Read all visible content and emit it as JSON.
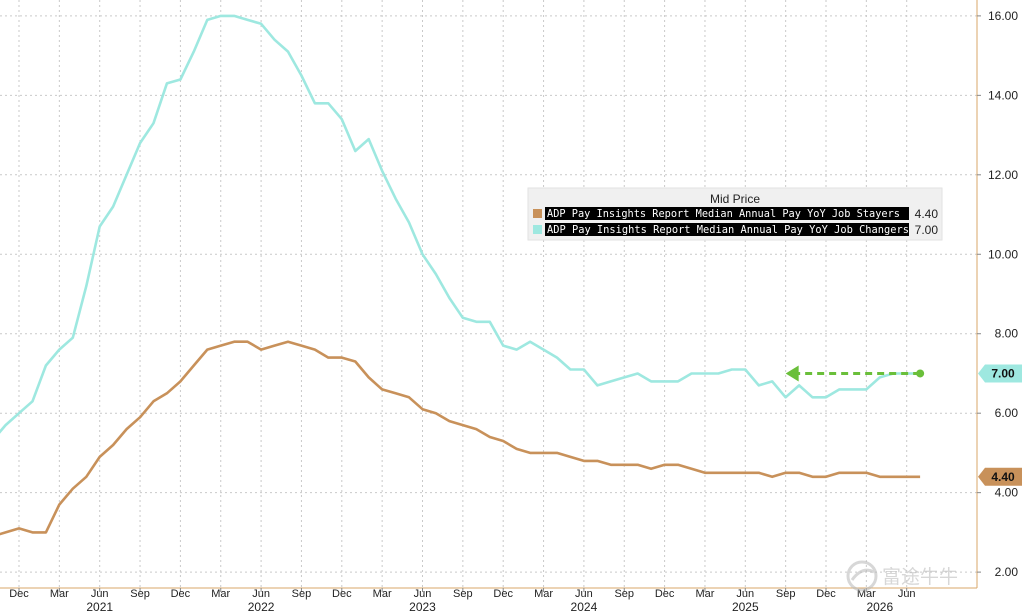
{
  "chart_data": {
    "type": "line",
    "title": "",
    "xlabel": "",
    "ylabel": "",
    "ylim": [
      1.6,
      16.4
    ],
    "y_ticks": [
      "2.00",
      "4.00",
      "6.00",
      "8.00",
      "10.00",
      "12.00",
      "14.00",
      "16.00"
    ],
    "y_axis_side": "right",
    "grid": true,
    "x_tick_labels": [
      {
        "date": "2020-12",
        "label": "Dec"
      },
      {
        "date": "2021-03",
        "label": "Mar"
      },
      {
        "date": "2021-06",
        "label": "Jun"
      },
      {
        "date": "2021-09",
        "label": "Sep"
      },
      {
        "date": "2021-12",
        "label": "Dec"
      },
      {
        "date": "2022-03",
        "label": "Mar"
      },
      {
        "date": "2022-06",
        "label": "Jun"
      },
      {
        "date": "2022-09",
        "label": "Sep"
      },
      {
        "date": "2022-12",
        "label": "Dec"
      },
      {
        "date": "2023-03",
        "label": "Mar"
      },
      {
        "date": "2023-06",
        "label": "Jun"
      },
      {
        "date": "2023-09",
        "label": "Sep"
      },
      {
        "date": "2023-12",
        "label": "Dec"
      },
      {
        "date": "2024-03",
        "label": "Mar"
      },
      {
        "date": "2024-06",
        "label": "Jun"
      },
      {
        "date": "2024-09",
        "label": "Sep"
      },
      {
        "date": "2024-12",
        "label": "Dec"
      },
      {
        "date": "2025-03",
        "label": "Mar"
      },
      {
        "date": "2025-06",
        "label": "Jun"
      },
      {
        "date": "2025-09",
        "label": "Sep"
      },
      {
        "date": "2025-12",
        "label": "Dec"
      },
      {
        "date": "2026-03",
        "label": "Mar"
      },
      {
        "date": "2026-06",
        "label": "Jun"
      }
    ],
    "year_labels": [
      {
        "date": "2021-06",
        "label": "2021"
      },
      {
        "date": "2022-06",
        "label": "2022"
      },
      {
        "date": "2023-06",
        "label": "2023"
      },
      {
        "date": "2024-06",
        "label": "2024"
      },
      {
        "date": "2025-06",
        "label": "2025"
      },
      {
        "date": "2026-04",
        "label": "2026"
      }
    ],
    "legend": {
      "title": "Mid Price",
      "placement": "right-center"
    },
    "series": [
      {
        "name": "ADP Pay Insights Report Median Annual Pay YoY Job Stayers",
        "value_label": "4.40",
        "badge": "4.40",
        "color": "#c8915a",
        "x": [
          "2020-10",
          "2020-11",
          "2020-12",
          "2021-01",
          "2021-02",
          "2021-03",
          "2021-04",
          "2021-05",
          "2021-06",
          "2021-07",
          "2021-08",
          "2021-09",
          "2021-10",
          "2021-11",
          "2021-12",
          "2022-01",
          "2022-02",
          "2022-03",
          "2022-04",
          "2022-05",
          "2022-06",
          "2022-07",
          "2022-08",
          "2022-09",
          "2022-10",
          "2022-11",
          "2022-12",
          "2023-01",
          "2023-02",
          "2023-03",
          "2023-04",
          "2023-05",
          "2023-06",
          "2023-07",
          "2023-08",
          "2023-09",
          "2023-10",
          "2023-11",
          "2023-12",
          "2024-01",
          "2024-02",
          "2024-03",
          "2024-04",
          "2024-05",
          "2024-06",
          "2024-07",
          "2024-08",
          "2024-09",
          "2024-10",
          "2024-11",
          "2024-12",
          "2025-01",
          "2025-02",
          "2025-03",
          "2025-04",
          "2025-05",
          "2025-06",
          "2025-07",
          "2025-08",
          "2025-09",
          "2025-10",
          "2025-11",
          "2025-12",
          "2026-01",
          "2026-02",
          "2026-03",
          "2026-04",
          "2026-05",
          "2026-06",
          "2026-07"
        ],
        "values": [
          2.9,
          3.0,
          3.1,
          3.0,
          3.0,
          3.7,
          4.1,
          4.4,
          4.9,
          5.2,
          5.6,
          5.9,
          6.3,
          6.5,
          6.8,
          7.2,
          7.6,
          7.7,
          7.8,
          7.8,
          7.6,
          7.7,
          7.8,
          7.7,
          7.6,
          7.4,
          7.4,
          7.3,
          6.9,
          6.6,
          6.5,
          6.4,
          6.1,
          6.0,
          5.8,
          5.7,
          5.6,
          5.4,
          5.3,
          5.1,
          5.0,
          5.0,
          5.0,
          4.9,
          4.8,
          4.8,
          4.7,
          4.7,
          4.7,
          4.6,
          4.7,
          4.7,
          4.6,
          4.5,
          4.5,
          4.5,
          4.5,
          4.5,
          4.4,
          4.5,
          4.5,
          4.4,
          4.4,
          4.5,
          4.5,
          4.5,
          4.4,
          4.4,
          4.4,
          4.4
        ]
      },
      {
        "name": "ADP Pay Insights Report Median Annual Pay YoY Job Changers",
        "value_label": "7.00",
        "badge": "7.00",
        "color": "#9ee8e0",
        "x": [
          "2020-10",
          "2020-11",
          "2020-12",
          "2021-01",
          "2021-02",
          "2021-03",
          "2021-04",
          "2021-05",
          "2021-06",
          "2021-07",
          "2021-08",
          "2021-09",
          "2021-10",
          "2021-11",
          "2021-12",
          "2022-01",
          "2022-02",
          "2022-03",
          "2022-04",
          "2022-05",
          "2022-06",
          "2022-07",
          "2022-08",
          "2022-09",
          "2022-10",
          "2022-11",
          "2022-12",
          "2023-01",
          "2023-02",
          "2023-03",
          "2023-04",
          "2023-05",
          "2023-06",
          "2023-07",
          "2023-08",
          "2023-09",
          "2023-10",
          "2023-11",
          "2023-12",
          "2024-01",
          "2024-02",
          "2024-03",
          "2024-04",
          "2024-05",
          "2024-06",
          "2024-07",
          "2024-08",
          "2024-09",
          "2024-10",
          "2024-11",
          "2024-12",
          "2025-01",
          "2025-02",
          "2025-03",
          "2025-04",
          "2025-05",
          "2025-06",
          "2025-07",
          "2025-08",
          "2025-09",
          "2025-10",
          "2025-11",
          "2025-12",
          "2026-01",
          "2026-02",
          "2026-03",
          "2026-04",
          "2026-05",
          "2026-06",
          "2026-07"
        ],
        "values": [
          5.3,
          5.7,
          6.0,
          6.3,
          7.2,
          7.6,
          7.9,
          9.2,
          10.7,
          11.2,
          12.0,
          12.8,
          13.3,
          14.3,
          14.4,
          15.1,
          15.9,
          16.0,
          16.0,
          15.9,
          15.8,
          15.4,
          15.1,
          14.5,
          13.8,
          13.8,
          13.4,
          12.6,
          12.9,
          12.1,
          11.4,
          10.8,
          10.0,
          9.5,
          8.9,
          8.4,
          8.3,
          8.3,
          7.7,
          7.6,
          7.8,
          7.6,
          7.4,
          7.1,
          7.1,
          6.7,
          6.8,
          6.9,
          7.0,
          6.8,
          6.8,
          6.8,
          7.0,
          7.0,
          7.0,
          7.1,
          7.1,
          6.7,
          6.8,
          6.4,
          6.7,
          6.4,
          6.4,
          6.6,
          6.6,
          6.6,
          6.9,
          7.0,
          7.0,
          7.0
        ]
      }
    ],
    "annotation": {
      "type": "dashed-arrow",
      "color": "#6abf3a",
      "from": {
        "x": "2026-07",
        "y": 7.0
      },
      "to": {
        "x": "2025-09",
        "y": 7.0
      }
    }
  },
  "watermark": {
    "text": "富途牛牛"
  }
}
